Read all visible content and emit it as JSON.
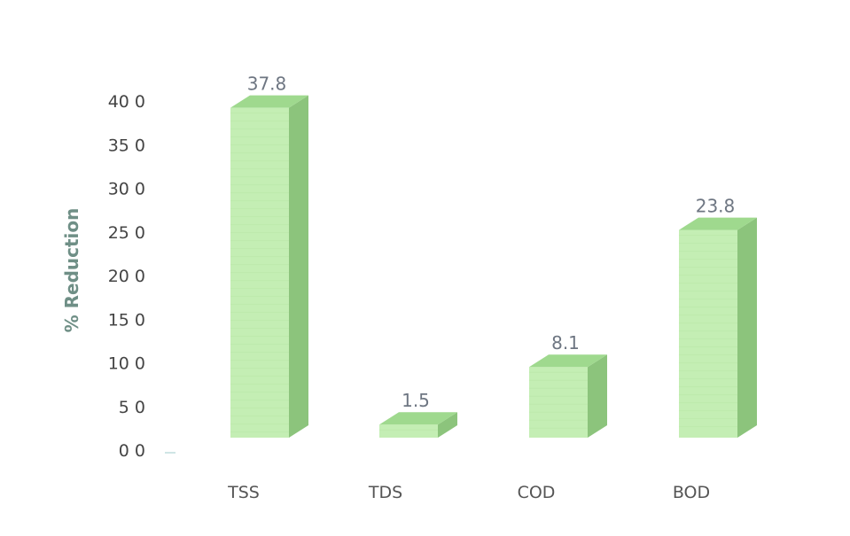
{
  "chart_data": {
    "type": "bar",
    "categories": [
      "TSS",
      "TDS",
      "COD",
      "BOD"
    ],
    "values": [
      37.8,
      1.5,
      8.1,
      23.8
    ],
    "ylabel": "% Reduction",
    "xlabel": "",
    "ylim": [
      0,
      40
    ],
    "yticks": [
      "0 0",
      "5 0",
      "10 0",
      "15 0",
      "20 0",
      "25 0",
      "30 0",
      "35 0",
      "40 0"
    ],
    "data_labels": [
      "37.8",
      "1.5",
      "8.1",
      "23.8"
    ],
    "bar_style": "3d",
    "grid": false
  },
  "colors": {
    "bar_front": "#c4eeb4",
    "bar_top": "#9fd98e",
    "bar_side": "#8cc47c"
  }
}
